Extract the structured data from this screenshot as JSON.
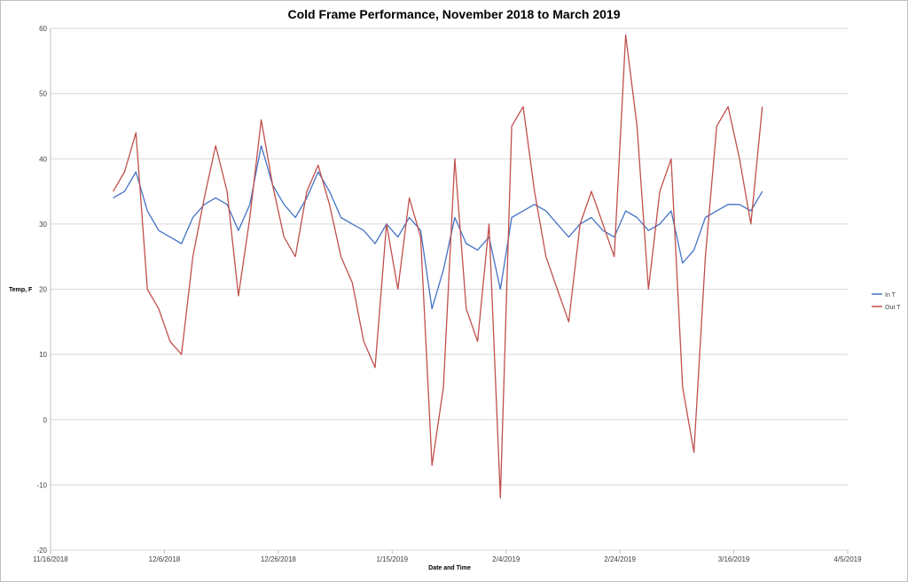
{
  "chart_data": {
    "type": "line",
    "title": "Cold Frame Performance, November 2018 to March 2019",
    "xlabel": "Date and Time",
    "ylabel": "Temp, F",
    "xlim": [
      "11/16/2018",
      "4/5/2019"
    ],
    "ylim": [
      -20,
      60
    ],
    "x_ticks": [
      "11/16/2018",
      "12/6/2018",
      "12/26/2018",
      "1/15/2019",
      "2/4/2019",
      "2/24/2019",
      "3/16/2019",
      "4/5/2019"
    ],
    "y_ticks": [
      -20,
      -10,
      0,
      10,
      20,
      30,
      40,
      50,
      60
    ],
    "grid": "horizontal",
    "legend_position": "right",
    "sample_dates": [
      "11/27/2018",
      "11/29/2018",
      "12/1/2018",
      "12/3/2018",
      "12/5/2018",
      "12/7/2018",
      "12/9/2018",
      "12/11/2018",
      "12/13/2018",
      "12/15/2018",
      "12/17/2018",
      "12/19/2018",
      "12/21/2018",
      "12/23/2018",
      "12/25/2018",
      "12/27/2018",
      "12/29/2018",
      "12/31/2018",
      "1/2/2019",
      "1/4/2019",
      "1/6/2019",
      "1/8/2019",
      "1/10/2019",
      "1/12/2019",
      "1/14/2019",
      "1/16/2019",
      "1/18/2019",
      "1/20/2019",
      "1/22/2019",
      "1/24/2019",
      "1/26/2019",
      "1/28/2019",
      "1/30/2019",
      "2/1/2019",
      "2/3/2019",
      "2/5/2019",
      "2/7/2019",
      "2/9/2019",
      "2/11/2019",
      "2/13/2019",
      "2/15/2019",
      "2/17/2019",
      "2/19/2019",
      "2/21/2019",
      "2/23/2019",
      "2/25/2019",
      "2/27/2019",
      "3/1/2019",
      "3/3/2019",
      "3/5/2019",
      "3/7/2019",
      "3/9/2019",
      "3/11/2019",
      "3/13/2019",
      "3/15/2019",
      "3/17/2019",
      "3/19/2019",
      "3/21/2019"
    ],
    "series": [
      {
        "name": "In T",
        "color": "#4472C4",
        "values": [
          34,
          35,
          38,
          32,
          29,
          28,
          27,
          31,
          33,
          34,
          33,
          29,
          33,
          42,
          36,
          33,
          31,
          34,
          38,
          35,
          31,
          30,
          29,
          27,
          30,
          28,
          31,
          29,
          17,
          23,
          31,
          27,
          26,
          28,
          20,
          31,
          32,
          33,
          32,
          30,
          28,
          30,
          31,
          29,
          28,
          32,
          31,
          29,
          30,
          32,
          24,
          26,
          31,
          32,
          33,
          33,
          32,
          35
        ]
      },
      {
        "name": "Out T",
        "color": "#C0504D",
        "values": [
          35,
          38,
          44,
          20,
          17,
          12,
          10,
          25,
          34,
          42,
          35,
          19,
          31,
          46,
          36,
          28,
          25,
          35,
          39,
          33,
          25,
          21,
          12,
          8,
          30,
          20,
          34,
          28,
          -7,
          5,
          40,
          17,
          12,
          30,
          -12,
          45,
          48,
          35,
          25,
          20,
          15,
          30,
          35,
          30,
          25,
          59,
          45,
          20,
          35,
          40,
          5,
          -5,
          25,
          45,
          48,
          40,
          30,
          48
        ]
      }
    ]
  }
}
